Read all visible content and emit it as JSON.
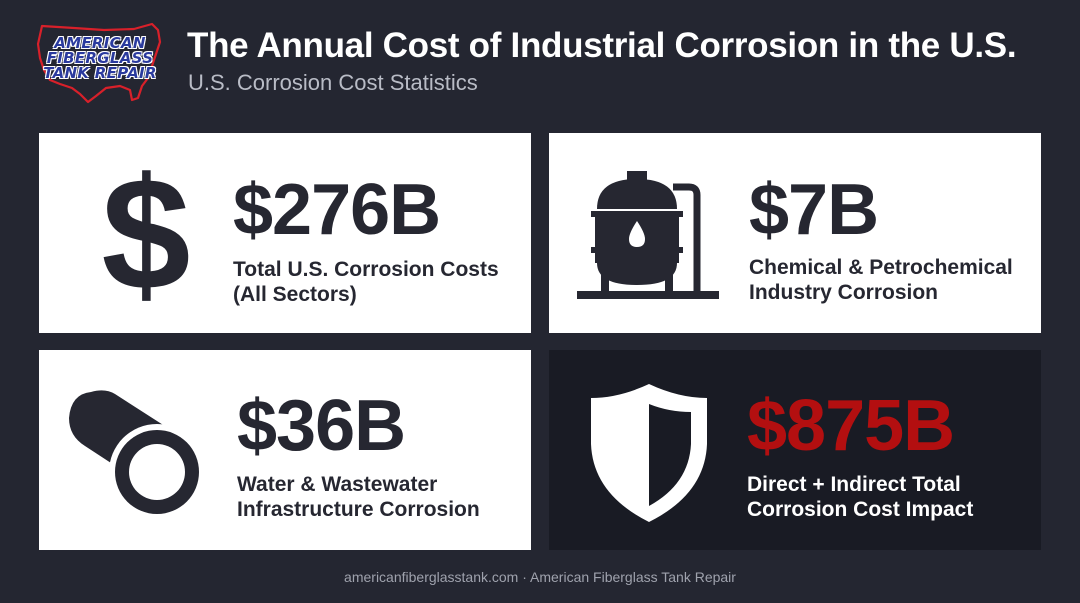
{
  "header": {
    "title": "The Annual Cost of Industrial Corrosion in the U.S.",
    "subtitle": "U.S. Corrosion Cost Statistics",
    "logo_lines": [
      "AMERICAN",
      "FIBERGLASS",
      "TANK REPAIR"
    ]
  },
  "cards": [
    {
      "value": "$276B",
      "label_lines": [
        "Total U.S. Corrosion Costs",
        "(All Sectors)"
      ],
      "icon": "dollar-icon",
      "theme": "light"
    },
    {
      "value": "$7B",
      "label_lines": [
        "Chemical & Petrochemical",
        "Industry Corrosion"
      ],
      "icon": "storage-tank-icon",
      "theme": "light"
    },
    {
      "value": "$36B",
      "label_lines": [
        "Water & Wastewater",
        "Infrastructure Corrosion"
      ],
      "icon": "pipe-icon",
      "theme": "light"
    },
    {
      "value": "$875B",
      "label_lines": [
        "Direct + Indirect Total",
        "Corrosion Cost Impact"
      ],
      "icon": "shield-icon",
      "theme": "dark"
    }
  ],
  "footer": {
    "text": "americanfiberglasstank.com · American Fiberglass Tank Repair"
  },
  "colors": {
    "background": "#242631",
    "card_light": "#ffffff",
    "card_dark": "#191b24",
    "text_dark": "#262731",
    "accent_red": "#b30f10",
    "logo_blue": "#2a3a9e",
    "logo_red": "#d8202a"
  }
}
